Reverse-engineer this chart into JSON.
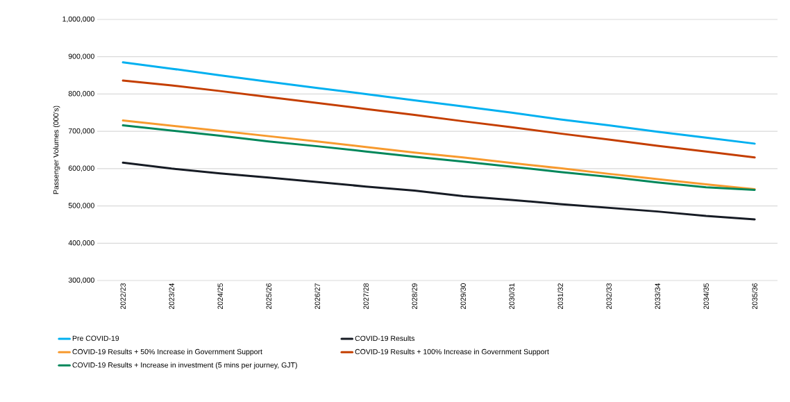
{
  "chart_data": {
    "type": "line",
    "ylabel": "Passenger Volumes (000's)",
    "categories": [
      "2022/23",
      "2023/24",
      "2024/25",
      "2025/26",
      "2026/27",
      "2027/28",
      "2028/29",
      "2029/30",
      "2030/31",
      "2031/32",
      "2032/33",
      "2033/34",
      "2034/35",
      "2035/36"
    ],
    "series": [
      {
        "name": "Pre COVID-19",
        "color": "#00b0f0",
        "values": [
          885000,
          868000,
          850000,
          833000,
          816000,
          800000,
          783000,
          767000,
          750000,
          732000,
          716000,
          699000,
          683000,
          667000
        ]
      },
      {
        "name": "COVID-19 Results",
        "color": "#161b24",
        "values": [
          616000,
          600000,
          587000,
          576000,
          564000,
          552000,
          541000,
          526000,
          516000,
          505000,
          495000,
          485000,
          473000,
          464000
        ]
      },
      {
        "name": "COVID-19 Results + 50% Increase in Government Support",
        "color": "#f79a2e",
        "values": [
          729000,
          715000,
          701000,
          687000,
          673000,
          658000,
          643000,
          630000,
          615000,
          601000,
          586000,
          572000,
          558000,
          545000
        ]
      },
      {
        "name": "COVID-19 Results + 100% Increase in Government Support",
        "color": "#c43e00",
        "values": [
          836000,
          823000,
          808000,
          792000,
          776000,
          760000,
          744000,
          727000,
          711000,
          694000,
          678000,
          661000,
          646000,
          630000
        ]
      },
      {
        "name": "COVID-19 Results + Increase in investment (5 mins per journey, GJT)",
        "color": "#00875a",
        "values": [
          716000,
          702000,
          688000,
          673000,
          660000,
          646000,
          632000,
          619000,
          605000,
          591000,
          578000,
          563000,
          550000,
          543000
        ]
      }
    ],
    "ylim": [
      300000,
      1000000
    ],
    "yticks": [
      {
        "value": 300000,
        "label": "300,000"
      },
      {
        "value": 400000,
        "label": "400,000"
      },
      {
        "value": 500000,
        "label": "500,000"
      },
      {
        "value": 600000,
        "label": "600,000"
      },
      {
        "value": 700000,
        "label": "700,000"
      },
      {
        "value": 800000,
        "label": "800,000"
      },
      {
        "value": 900000,
        "label": "900,000"
      },
      {
        "value": 1000000,
        "label": "1,000,000"
      }
    ],
    "grid": "y",
    "legend": "bottom",
    "marker": "none",
    "line_style": "solid"
  }
}
